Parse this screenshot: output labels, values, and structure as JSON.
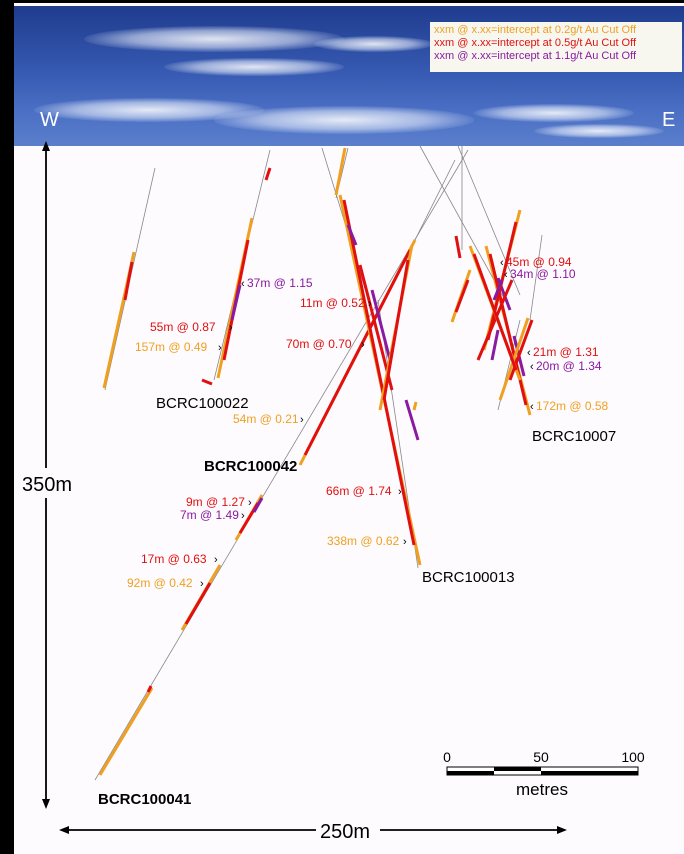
{
  "legend": [
    {
      "text": "xxm @ x.xx=intercept at 0.2g/t Au Cut Off",
      "color": "#f0a020"
    },
    {
      "text": "xxm @ x.xx=intercept at 0.5g/t Au Cut Off",
      "color": "#e01010"
    },
    {
      "text": "xxm @ x.xx=intercept at 1.1g/t Au Cut Off",
      "color": "#8a1aa0"
    }
  ],
  "directions": {
    "west": "W",
    "east": "E"
  },
  "depth_label": "350m",
  "width_label": "250m",
  "scale_bar": {
    "ticks": [
      "0",
      "50",
      "100"
    ],
    "unit": "metres"
  },
  "holes": [
    {
      "name": "BCRC100022",
      "bold": false
    },
    {
      "name": "BCRC100042",
      "bold": true
    },
    {
      "name": "BCRC10007",
      "bold": false
    },
    {
      "name": "BCRC100013",
      "bold": false
    },
    {
      "name": "BCRC100041",
      "bold": true
    }
  ],
  "intercepts": [
    {
      "text": "37m @ 1.15",
      "color": "#8a1aa0"
    },
    {
      "text": "55m @ 0.87",
      "color": "#e01010"
    },
    {
      "text": "157m @ 0.49",
      "color": "#f0a020"
    },
    {
      "text": "11m @ 0.52",
      "color": "#e01010"
    },
    {
      "text": "70m @ 0.70",
      "color": "#e01010"
    },
    {
      "text": "54m @ 0.21",
      "color": "#f0a020"
    },
    {
      "text": "45m @ 0.94",
      "color": "#e01010"
    },
    {
      "text": "34m @ 1.10",
      "color": "#8a1aa0"
    },
    {
      "text": "21m @ 1.31",
      "color": "#e01010"
    },
    {
      "text": "20m @ 1.34",
      "color": "#8a1aa0"
    },
    {
      "text": "172m @ 0.58",
      "color": "#f0a020"
    },
    {
      "text": "66m @ 1.74",
      "color": "#e01010"
    },
    {
      "text": "338m @ 0.62",
      "color": "#f0a020"
    },
    {
      "text": "9m @ 1.27",
      "color": "#e01010"
    },
    {
      "text": "7m @ 1.49",
      "color": "#8a1aa0"
    },
    {
      "text": "17m @ 0.63",
      "color": "#e01010"
    },
    {
      "text": "92m @ 0.42",
      "color": "#f0a020"
    }
  ],
  "colors": {
    "grade_low": "#f0a020",
    "grade_mid": "#e01010",
    "grade_high": "#8a1aa0",
    "sky": "#3558b0",
    "drill_trace": "#888888"
  }
}
